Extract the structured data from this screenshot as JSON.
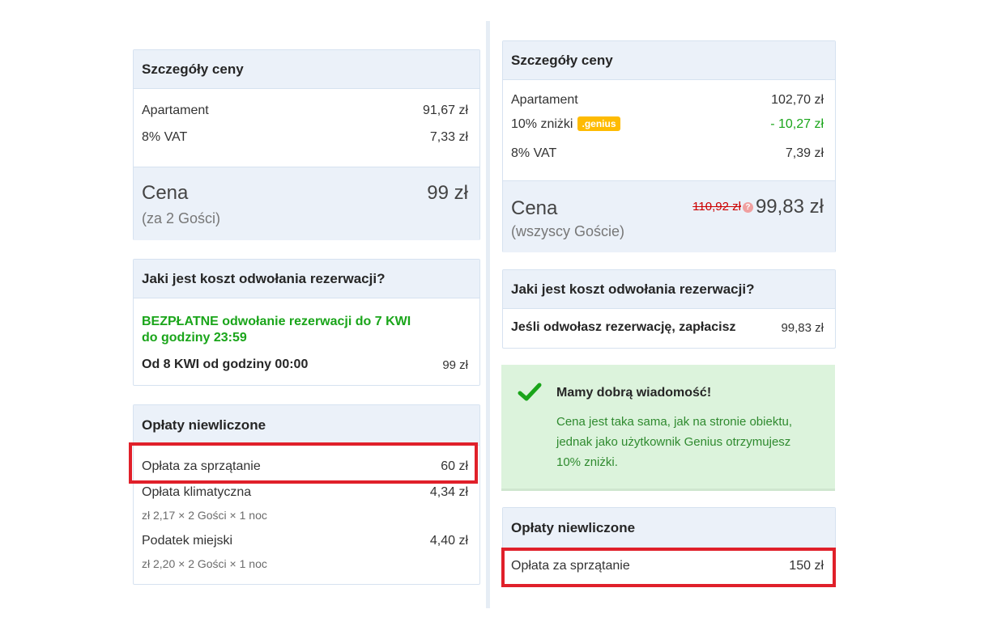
{
  "left": {
    "price": {
      "title": "Szczegóły ceny",
      "rows": [
        {
          "label": "Apartament",
          "value": "91,67 zł"
        },
        {
          "label": "8% VAT",
          "value": "7,33 zł"
        }
      ],
      "total_label": "Cena",
      "total_sub": "(za 2 Gości)",
      "total_value": "99 zł"
    },
    "cancel": {
      "title": "Jaki jest koszt odwołania rezerwacji?",
      "free_line1": "BEZPŁATNE odwołanie rezerwacji do 7 KWI",
      "free_line2": "do godziny 23:59",
      "from_label": "Od 8 KWI od godziny 00:00",
      "from_value": "99 zł"
    },
    "fees": {
      "title": "Opłaty niewliczone",
      "items": [
        {
          "label": "Opłata za sprzątanie",
          "value": "60 zł",
          "detail": ""
        },
        {
          "label": "Opłata klimatyczna",
          "value": "4,34 zł",
          "detail": "zł 2,17  ×  2 Gości  ×  1 noc"
        },
        {
          "label": "Podatek miejski",
          "value": "4,40 zł",
          "detail": "zł 2,20  ×  2 Gości  ×  1 noc"
        }
      ]
    }
  },
  "right": {
    "price": {
      "title": "Szczegóły ceny",
      "rows": [
        {
          "label": "Apartament",
          "value": "102,70 zł"
        },
        {
          "label": "10% zniżki",
          "badge": ".genius",
          "value": "-  10,27 zł"
        },
        {
          "label": "8% VAT",
          "value": "7,39 zł"
        }
      ],
      "total_label": "Cena",
      "total_sub": "(wszyscy Goście)",
      "old_value": "110,92 zł",
      "total_value": "99,83 zł"
    },
    "cancel": {
      "title": "Jaki jest koszt odwołania rezerwacji?",
      "row_label": "Jeśli odwołasz rezerwację, zapłacisz",
      "row_value": "99,83 zł"
    },
    "good_news": {
      "title": "Mamy dobrą wiadomość!",
      "message": "Cena jest taka sama, jak na stronie obiektu, jednak jako użytkownik Genius otrzymujesz 10% zniżki."
    },
    "fees": {
      "title": "Opłaty niewliczone",
      "items": [
        {
          "label": "Opłata za sprzątanie",
          "value": "150 zł"
        }
      ]
    }
  },
  "colors": {
    "highlight": "#e0202a",
    "green": "#1aa51a",
    "genius": "#febb02",
    "panel_header": "#ebf1f9"
  }
}
